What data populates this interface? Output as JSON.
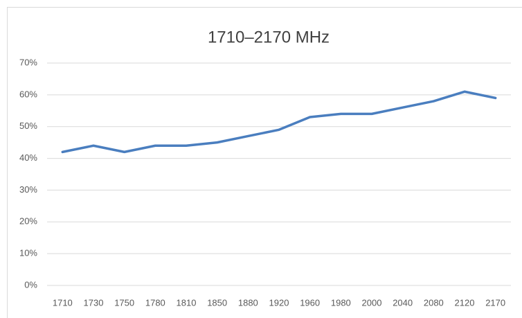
{
  "chart_data": {
    "type": "line",
    "title": "1710–2170 MHz",
    "categories": [
      "1710",
      "1730",
      "1750",
      "1780",
      "1810",
      "1850",
      "1880",
      "1920",
      "1960",
      "1980",
      "2000",
      "2040",
      "2080",
      "2120",
      "2170"
    ],
    "values": [
      42,
      44,
      42,
      44,
      44,
      45,
      47,
      49,
      53,
      54,
      54,
      56,
      58,
      61,
      59
    ],
    "color": "#4a7ebf",
    "ylim": [
      0,
      70
    ],
    "yticks": [
      {
        "value": 0,
        "label": "0%"
      },
      {
        "value": 10,
        "label": "10%"
      },
      {
        "value": 20,
        "label": "20%"
      },
      {
        "value": 30,
        "label": "30%"
      },
      {
        "value": 40,
        "label": "40%"
      },
      {
        "value": 50,
        "label": "50%"
      },
      {
        "value": 60,
        "label": "60%"
      },
      {
        "value": 70,
        "label": "70%"
      }
    ],
    "grid": true
  }
}
